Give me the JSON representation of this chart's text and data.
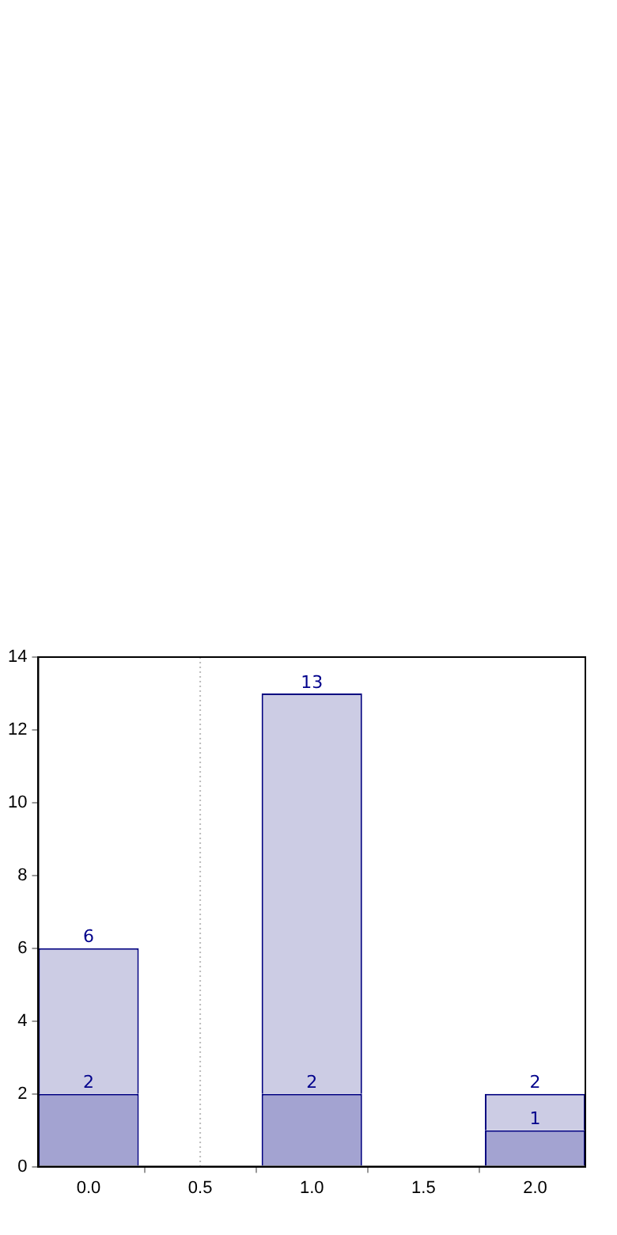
{
  "chart_data": {
    "type": "bar",
    "x": [
      0,
      1,
      2
    ],
    "stacked": true,
    "series": [
      {
        "color": "#a3a3d1",
        "values": [
          2,
          2,
          1
        ],
        "value_labels": [
          "2",
          "2",
          "1"
        ]
      },
      {
        "color": "#cccce4",
        "values": [
          4,
          11,
          1
        ]
      }
    ],
    "totals": [
      "6",
      "13",
      "2"
    ],
    "xlim": [
      -0.225,
      2.225
    ],
    "xticks": [
      {
        "value": 0,
        "label": "0.0"
      },
      {
        "value": 0.5,
        "label": "0.5"
      },
      {
        "value": 1,
        "label": "1.0"
      },
      {
        "value": 1.5,
        "label": "1.5"
      },
      {
        "value": 2,
        "label": "2.0"
      }
    ],
    "ylim": [
      0,
      14
    ],
    "yticks": [
      0,
      2,
      4,
      6,
      8,
      10,
      12,
      14
    ],
    "ref_lines": [
      {
        "axis": "x",
        "value": 0.5,
        "color": "#bbbbbb",
        "line_style": "dotted"
      }
    ],
    "grid": false,
    "legend": false
  }
}
